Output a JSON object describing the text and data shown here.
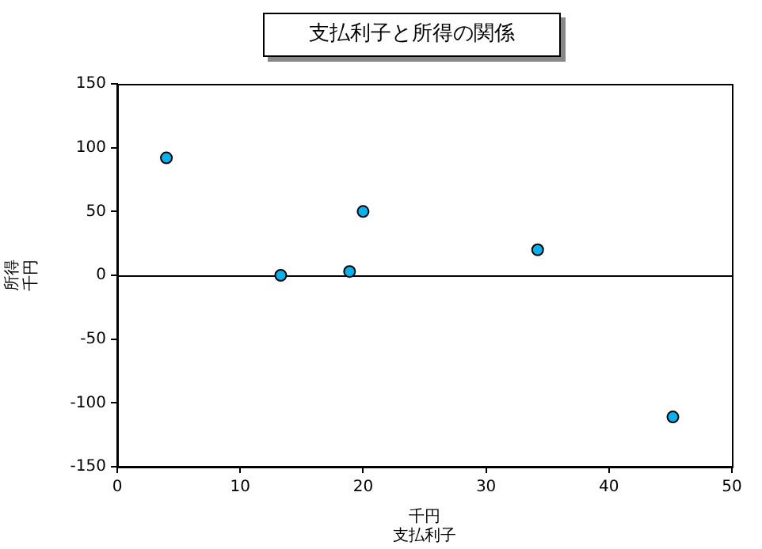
{
  "chart_data": {
    "type": "scatter",
    "title": "支払利子と所得の関係",
    "xlabel": "支払利子",
    "ylabel": "所得",
    "annotations": [
      "千円",
      "千円"
    ],
    "x": [
      4,
      13.3,
      18.9,
      20,
      34.2,
      45.2
    ],
    "series": [
      {
        "color": "#00b4f0",
        "values": [
          92,
          0,
          3,
          50,
          20,
          -111
        ]
      }
    ],
    "xlim": [
      0,
      50
    ],
    "xticks": [
      0,
      10,
      20,
      30,
      40,
      50
    ],
    "ylim": [
      -150,
      150
    ],
    "yticks": [
      -150,
      -100,
      -50,
      0,
      50,
      100,
      150
    ],
    "ref_lines": [
      {
        "axis": "y",
        "value": 0,
        "color": "#000000"
      }
    ],
    "marker": "circle",
    "grid": false,
    "legend": false
  }
}
